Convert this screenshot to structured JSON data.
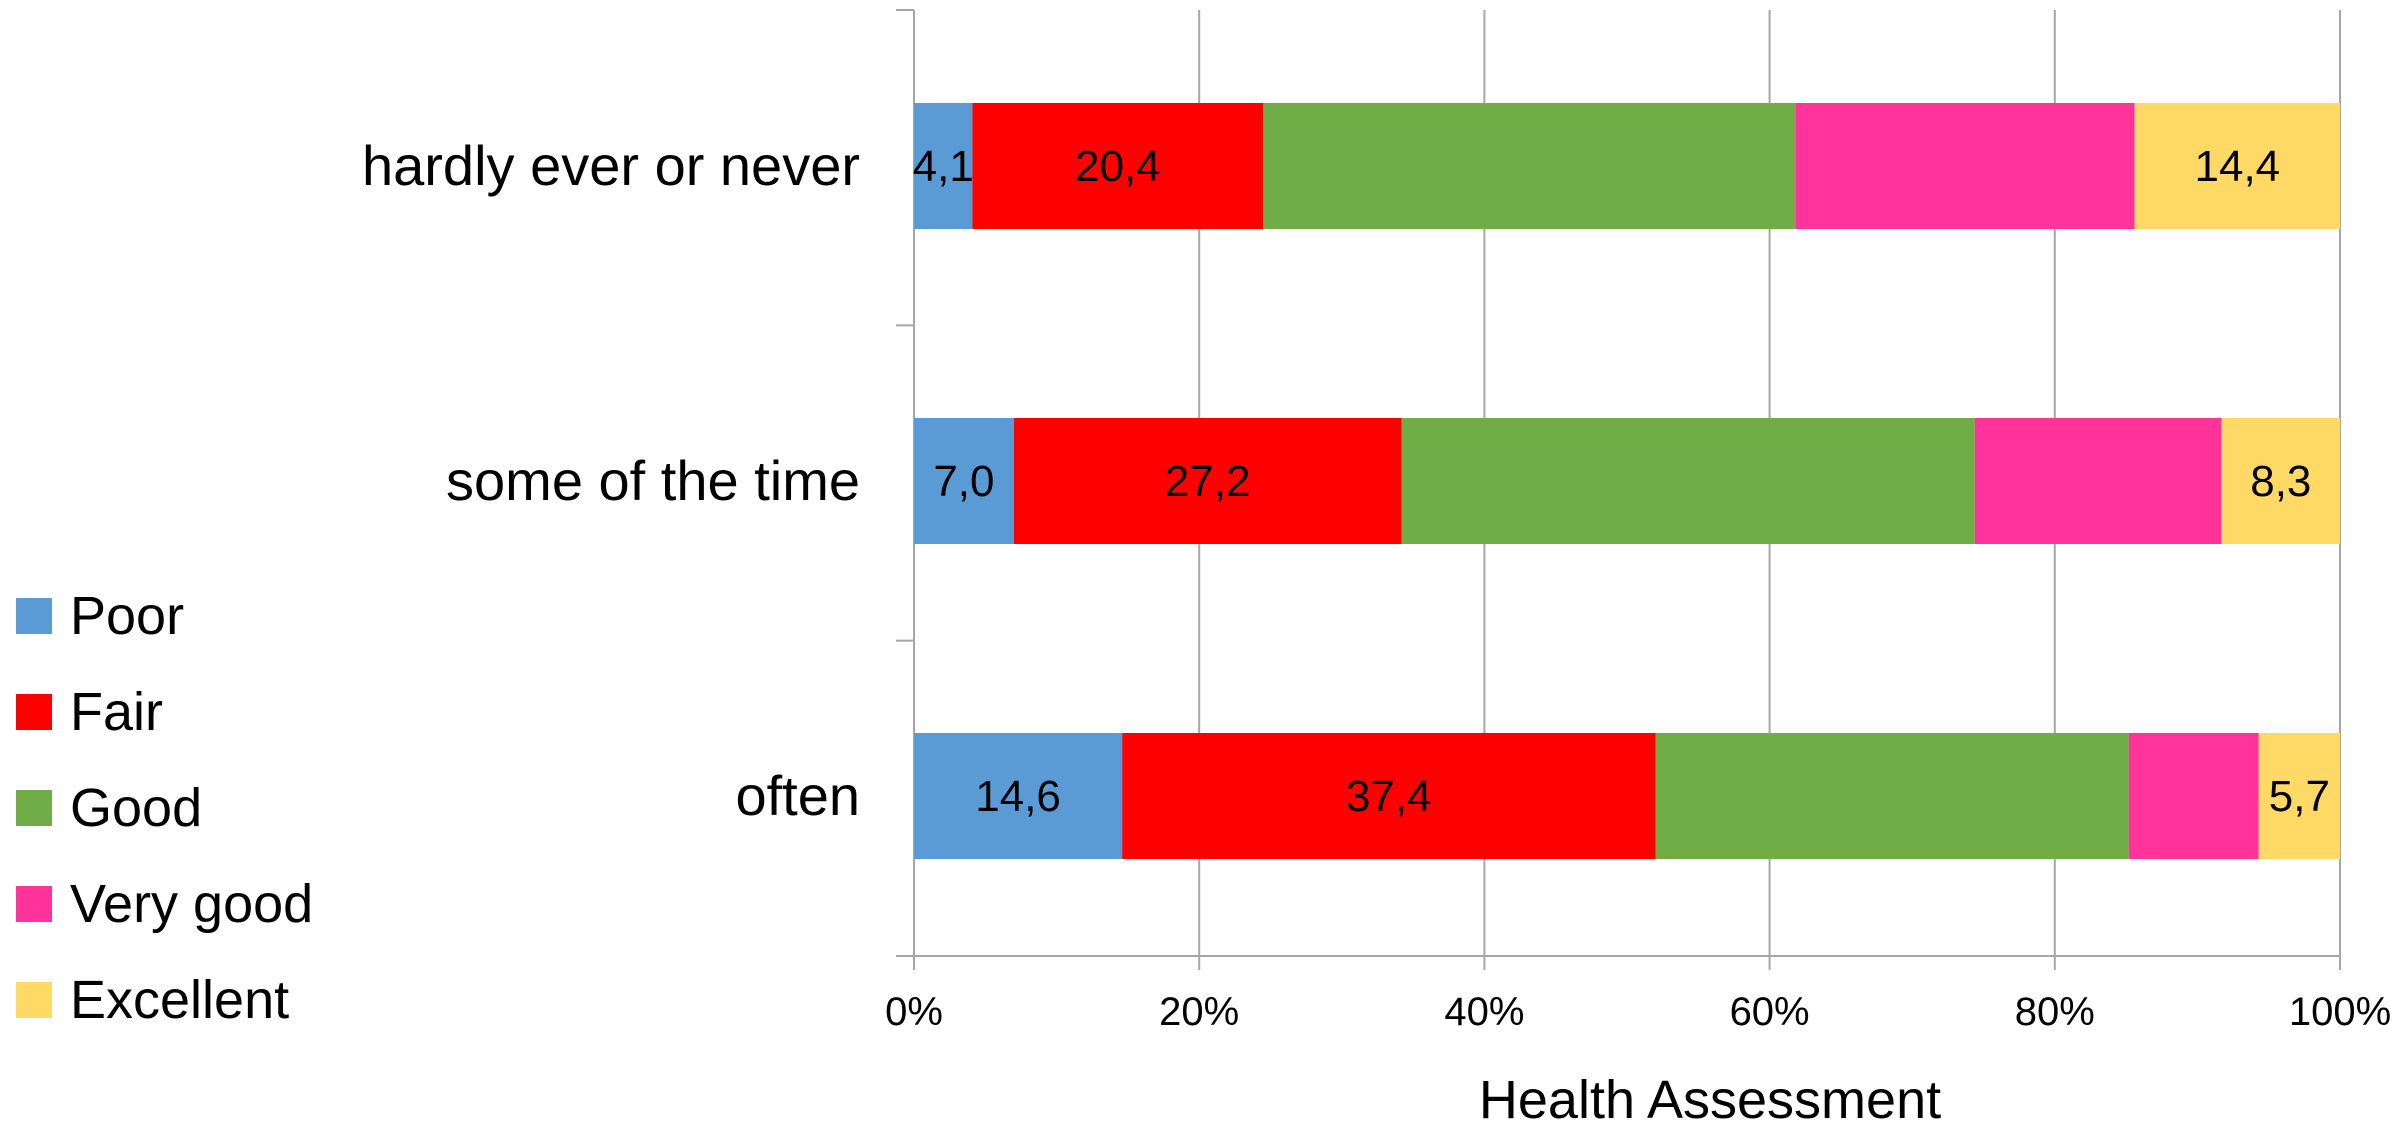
{
  "chart_data": {
    "type": "bar",
    "orientation": "horizontal",
    "stacked": "percent",
    "categories": [
      "hardly ever or never",
      "some of the time",
      "often"
    ],
    "series": [
      {
        "name": "Poor",
        "color": "#5B9BD5",
        "values": [
          4.1,
          7.0,
          14.6
        ],
        "labels": [
          "4,1",
          "7,0",
          "14,6"
        ]
      },
      {
        "name": "Fair",
        "color": "#FF0000",
        "values": [
          20.4,
          27.2,
          37.4
        ],
        "labels": [
          "20,4",
          "27,2",
          "37,4"
        ]
      },
      {
        "name": "Good",
        "color": "#70AD47",
        "values": [
          37.3,
          40.2,
          33.2
        ],
        "labels": [
          "",
          "",
          ""
        ]
      },
      {
        "name": "Very good",
        "color": "#FF3399",
        "values": [
          23.8,
          17.3,
          9.1
        ],
        "labels": [
          "",
          "",
          ""
        ]
      },
      {
        "name": "Excellent",
        "color": "#FFD966",
        "values": [
          14.4,
          8.3,
          5.7
        ],
        "labels": [
          "14,4",
          "8,3",
          "5,7"
        ]
      }
    ],
    "x_ticks": [
      "0%",
      "20%",
      "40%",
      "60%",
      "80%",
      "100%"
    ],
    "xlim": [
      0,
      100
    ],
    "xlabel": "Health Assessment",
    "ylabel": "",
    "title": "",
    "grid": true,
    "legend_position": "left"
  }
}
